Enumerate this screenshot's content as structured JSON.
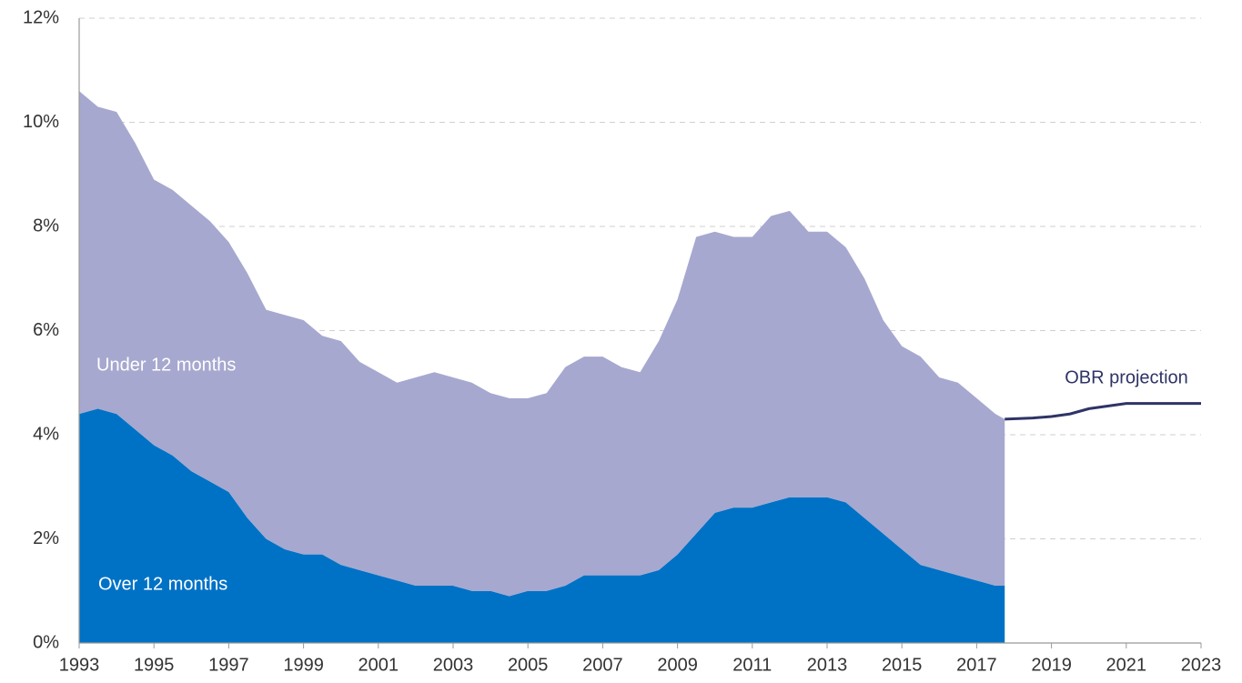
{
  "chart_data": {
    "type": "stacked_area",
    "x": [
      1993,
      1993.5,
      1994,
      1994.5,
      1995,
      1995.5,
      1996,
      1996.5,
      1997,
      1997.5,
      1998,
      1998.5,
      1999,
      1999.5,
      2000,
      2000.5,
      2001,
      2001.5,
      2002,
      2002.5,
      2003,
      2003.5,
      2004,
      2004.5,
      2005,
      2005.5,
      2006,
      2006.5,
      2007,
      2007.5,
      2008,
      2008.5,
      2009,
      2009.5,
      2010,
      2010.5,
      2011,
      2011.5,
      2012,
      2012.5,
      2013,
      2013.5,
      2014,
      2014.5,
      2015,
      2015.5,
      2016,
      2016.5,
      2017,
      2017.5,
      2017.75
    ],
    "series": [
      {
        "name": "Over 12 months",
        "color": "#0072c6",
        "values": [
          4.4,
          4.5,
          4.4,
          4.1,
          3.8,
          3.6,
          3.3,
          3.1,
          2.9,
          2.4,
          2.0,
          1.8,
          1.7,
          1.7,
          1.5,
          1.4,
          1.3,
          1.2,
          1.1,
          1.1,
          1.1,
          1.0,
          1.0,
          0.9,
          1.0,
          1.0,
          1.1,
          1.3,
          1.3,
          1.3,
          1.3,
          1.4,
          1.7,
          2.1,
          2.5,
          2.6,
          2.6,
          2.7,
          2.8,
          2.8,
          2.8,
          2.7,
          2.4,
          2.1,
          1.8,
          1.5,
          1.4,
          1.3,
          1.2,
          1.1,
          1.1
        ]
      },
      {
        "name": "Under 12 months",
        "color": "#a6a8cf",
        "values": [
          6.2,
          5.8,
          5.8,
          5.5,
          5.1,
          5.1,
          5.1,
          5.0,
          4.8,
          4.7,
          4.4,
          4.5,
          4.5,
          4.2,
          4.3,
          4.0,
          3.9,
          3.8,
          4.0,
          4.1,
          4.0,
          4.0,
          3.8,
          3.8,
          3.7,
          3.8,
          4.2,
          4.2,
          4.2,
          4.0,
          3.9,
          4.4,
          4.9,
          5.7,
          5.4,
          5.2,
          5.2,
          5.5,
          5.5,
          5.1,
          5.1,
          4.9,
          4.6,
          4.1,
          3.9,
          4.0,
          3.7,
          3.7,
          3.5,
          3.3,
          3.2
        ]
      }
    ],
    "projection": {
      "name": "OBR projection",
      "color": "#2e3466",
      "x": [
        2017.75,
        2018.5,
        2019,
        2019.5,
        2020,
        2020.5,
        2021,
        2022,
        2023
      ],
      "values": [
        4.3,
        4.32,
        4.35,
        4.4,
        4.5,
        4.55,
        4.6,
        4.6,
        4.6
      ]
    },
    "xlim": [
      1993,
      2023
    ],
    "xticks": [
      1993,
      1995,
      1997,
      1999,
      2001,
      2003,
      2005,
      2007,
      2009,
      2011,
      2013,
      2015,
      2017,
      2019,
      2021,
      2023
    ],
    "ylim": [
      0,
      12
    ],
    "yticks": [
      {
        "value": 0,
        "label": "0%"
      },
      {
        "value": 2,
        "label": "2%"
      },
      {
        "value": 4,
        "label": "4%"
      },
      {
        "value": 6,
        "label": "6%"
      },
      {
        "value": 8,
        "label": "8%"
      },
      {
        "value": 10,
        "label": "10%"
      },
      {
        "value": 12,
        "label": "12%"
      }
    ],
    "grid": true
  }
}
